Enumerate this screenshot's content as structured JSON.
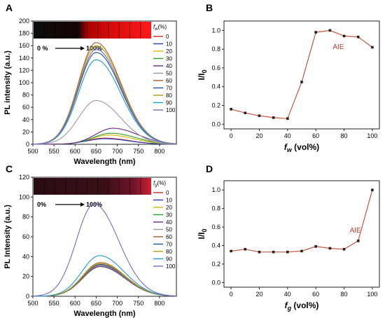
{
  "chart_data": [
    {
      "type": "line",
      "panel_letter": "A",
      "xlabel": "Wavelength (nm)",
      "ylabel": "PL intensity (a.u.)",
      "xlim": [
        500,
        840
      ],
      "ylim": [
        0,
        200
      ],
      "xticks": [
        500,
        550,
        600,
        650,
        700,
        750,
        800
      ],
      "yticks": [
        0,
        20,
        40,
        60,
        80,
        100,
        120,
        140,
        160,
        180,
        200
      ],
      "legend_title_var": "f",
      "legend_title_sub": "w",
      "legend_title_unit": "(%)",
      "legend_position": "right",
      "inset_start": "0 %",
      "inset_end": "100%",
      "series": [
        {
          "name": "0",
          "color": "#d62728",
          "peak": 10,
          "center": 670
        },
        {
          "name": "10",
          "color": "#1f3fbf",
          "peak": 9,
          "center": 670
        },
        {
          "name": "20",
          "color": "#d4b800",
          "peak": 15,
          "center": 680
        },
        {
          "name": "30",
          "color": "#2ca02c",
          "peak": 18,
          "center": 685
        },
        {
          "name": "40",
          "color": "#6a2a8a",
          "peak": 26,
          "center": 690
        },
        {
          "name": "50",
          "color": "#999999",
          "peak": 71,
          "center": 650
        },
        {
          "name": "60",
          "color": "#b05a2a",
          "peak": 165,
          "center": 650
        },
        {
          "name": "70",
          "color": "#1f4fa0",
          "peak": 149,
          "center": 650
        },
        {
          "name": "80",
          "color": "#b8a000",
          "peak": 160,
          "center": 650
        },
        {
          "name": "90",
          "color": "#1f9ad6",
          "peak": 137,
          "center": 650
        },
        {
          "name": "100",
          "color": "#7a6ac0",
          "peak": 154,
          "center": 650
        }
      ]
    },
    {
      "type": "line",
      "panel_letter": "B",
      "xlabel_var": "f",
      "xlabel_sub": "w",
      "xlabel_unit": " (vol%)",
      "ylabel_var": "I/I",
      "ylabel_sub": "0",
      "xlim": [
        -5,
        105
      ],
      "ylim": [
        -0.05,
        1.1
      ],
      "xticks": [
        0,
        20,
        40,
        60,
        80,
        100
      ],
      "yticks": [
        0.0,
        0.2,
        0.4,
        0.6,
        0.8,
        1.0
      ],
      "annotation": "AIE",
      "annotation_pos": [
        72,
        0.8
      ],
      "x": [
        0,
        10,
        20,
        30,
        40,
        50,
        60,
        70,
        80,
        90,
        100
      ],
      "y": [
        0.16,
        0.12,
        0.09,
        0.07,
        0.06,
        0.45,
        0.98,
        1.0,
        0.94,
        0.93,
        0.82
      ]
    },
    {
      "type": "line",
      "panel_letter": "C",
      "xlabel": "Wavelength (nm)",
      "ylabel": "PL Intensity (a.u.)",
      "xlim": [
        500,
        840
      ],
      "ylim": [
        0,
        120
      ],
      "xticks": [
        500,
        550,
        600,
        650,
        700,
        750,
        800
      ],
      "yticks": [
        0,
        20,
        40,
        60,
        80,
        100,
        120
      ],
      "legend_title_var": "f",
      "legend_title_sub": "g",
      "legend_title_unit": "(%)",
      "legend_position": "right",
      "inset_start": "0%",
      "inset_end": "100%",
      "series": [
        {
          "name": "0",
          "color": "#d62728",
          "peak": 31,
          "center": 660
        },
        {
          "name": "10",
          "color": "#1f3fbf",
          "peak": 32,
          "center": 660
        },
        {
          "name": "20",
          "color": "#d4b800",
          "peak": 31,
          "center": 660
        },
        {
          "name": "30",
          "color": "#2ca02c",
          "peak": 30,
          "center": 660
        },
        {
          "name": "40",
          "color": "#6a2a8a",
          "peak": 30,
          "center": 660
        },
        {
          "name": "50",
          "color": "#999999",
          "peak": 31,
          "center": 660
        },
        {
          "name": "60",
          "color": "#b05a2a",
          "peak": 34,
          "center": 660
        },
        {
          "name": "70",
          "color": "#1f4fa0",
          "peak": 32,
          "center": 660
        },
        {
          "name": "80",
          "color": "#b8a000",
          "peak": 33,
          "center": 660
        },
        {
          "name": "90",
          "color": "#1f9ad6",
          "peak": 41,
          "center": 658
        },
        {
          "name": "100",
          "color": "#7a6ac0",
          "peak": 93,
          "center": 645
        }
      ]
    },
    {
      "type": "line",
      "panel_letter": "D",
      "xlabel_var": "f",
      "xlabel_sub": "g",
      "xlabel_unit": " (vol%)",
      "ylabel_var": "I/I",
      "ylabel_sub": "0",
      "xlim": [
        -5,
        105
      ],
      "ylim": [
        -0.05,
        1.1
      ],
      "xticks": [
        0,
        20,
        40,
        60,
        80,
        100
      ],
      "yticks": [
        0.0,
        0.2,
        0.4,
        0.6,
        0.8,
        1.0
      ],
      "annotation": "AIE",
      "annotation_pos": [
        84,
        0.54
      ],
      "x": [
        0,
        10,
        20,
        30,
        40,
        50,
        60,
        70,
        80,
        90,
        100
      ],
      "y": [
        0.34,
        0.36,
        0.33,
        0.33,
        0.33,
        0.34,
        0.39,
        0.37,
        0.36,
        0.45,
        1.0
      ]
    }
  ],
  "colors": {
    "scatter_line": "#c8553d",
    "aie_text": "#c0392b",
    "axis": "#222222"
  }
}
